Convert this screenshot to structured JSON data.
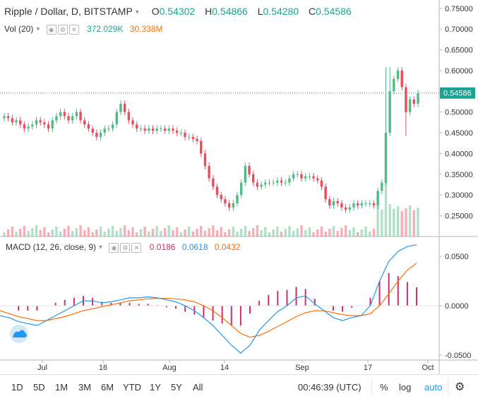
{
  "header": {
    "symbol": "Ripple / Dollar, D, BITSTAMP",
    "o_label": "O",
    "o_value": "0.54302",
    "h_label": "H",
    "h_value": "0.54866",
    "l_label": "L",
    "l_value": "0.54280",
    "c_label": "C",
    "c_value": "0.54586"
  },
  "volume": {
    "label": "Vol (20)",
    "value1": "372.029K",
    "value2": "30.338M"
  },
  "macd": {
    "label": "MACD (12, 26, close, 9)",
    "hist": "0.0186",
    "macd": "0.0618",
    "signal": "0.0432"
  },
  "price_axis": [
    "0.75000",
    "0.70000",
    "0.65000",
    "0.60000",
    "0.55000",
    "0.50000",
    "0.45000",
    "0.40000",
    "0.35000",
    "0.30000",
    "0.25000"
  ],
  "last_price": "0.54586",
  "macd_axis": [
    "0.0500",
    "0.0000",
    "-0.0500"
  ],
  "time_axis": [
    "Jul",
    "16",
    "Aug",
    "14",
    "Sep",
    "17",
    "Oct"
  ],
  "toolbar": {
    "ranges": [
      "1D",
      "5D",
      "1M",
      "3M",
      "6M",
      "YTD",
      "1Y",
      "5Y",
      "All"
    ],
    "time": "00:46:39 (UTC)",
    "percent": "%",
    "log": "log",
    "auto": "auto"
  },
  "colors": {
    "up": "#53b987",
    "down": "#eb4d5c",
    "macd": "#2196f3",
    "signal": "#ff6d00",
    "hist": "#cc2f71",
    "accent": "#1aa392"
  },
  "chart_data": {
    "type": "candlestick",
    "price_ylim": [
      0.2,
      0.77
    ],
    "macd_ylim": [
      -0.055,
      0.068
    ],
    "x_ticks": [
      "Jul",
      "16",
      "Aug",
      "14",
      "Sep",
      "17",
      "Oct"
    ],
    "closes": [
      0.49,
      0.485,
      0.475,
      0.48,
      0.47,
      0.46,
      0.465,
      0.47,
      0.48,
      0.475,
      0.47,
      0.46,
      0.48,
      0.49,
      0.5,
      0.49,
      0.48,
      0.49,
      0.5,
      0.48,
      0.47,
      0.46,
      0.45,
      0.44,
      0.45,
      0.46,
      0.46,
      0.47,
      0.5,
      0.52,
      0.5,
      0.48,
      0.47,
      0.46,
      0.46,
      0.455,
      0.46,
      0.455,
      0.46,
      0.46,
      0.455,
      0.46,
      0.455,
      0.45,
      0.45,
      0.44,
      0.44,
      0.435,
      0.43,
      0.4,
      0.37,
      0.34,
      0.32,
      0.3,
      0.29,
      0.28,
      0.27,
      0.28,
      0.3,
      0.33,
      0.37,
      0.35,
      0.33,
      0.32,
      0.325,
      0.33,
      0.33,
      0.33,
      0.335,
      0.33,
      0.33,
      0.34,
      0.35,
      0.35,
      0.34,
      0.345,
      0.345,
      0.34,
      0.335,
      0.32,
      0.29,
      0.275,
      0.285,
      0.28,
      0.27,
      0.265,
      0.27,
      0.28,
      0.275,
      0.28,
      0.28,
      0.28,
      0.275,
      0.31,
      0.33,
      0.45,
      0.55,
      0.58,
      0.6,
      0.56,
      0.5,
      0.53,
      0.52,
      0.545
    ],
    "macd_series": {
      "macd": [
        -0.01,
        -0.012,
        -0.016,
        -0.018,
        -0.02,
        -0.015,
        -0.01,
        -0.005,
        0.0,
        0.005,
        0.005,
        0.003,
        0.004,
        0.006,
        0.008,
        0.008,
        0.009,
        0.008,
        0.006,
        0.004,
        0.0,
        -0.005,
        -0.012,
        -0.02,
        -0.03,
        -0.04,
        -0.048,
        -0.04,
        -0.025,
        -0.015,
        -0.006,
        0.0,
        0.008,
        0.01,
        0.002,
        -0.005,
        -0.012,
        -0.015,
        -0.012,
        -0.01,
        0.0,
        0.025,
        0.045,
        0.055,
        0.06,
        0.0618
      ],
      "signal": [
        -0.005,
        -0.008,
        -0.011,
        -0.013,
        -0.015,
        -0.015,
        -0.013,
        -0.011,
        -0.008,
        -0.005,
        -0.003,
        -0.001,
        0.001,
        0.003,
        0.005,
        0.006,
        0.007,
        0.0075,
        0.0075,
        0.007,
        0.006,
        0.004,
        0.0,
        -0.005,
        -0.012,
        -0.02,
        -0.028,
        -0.032,
        -0.03,
        -0.026,
        -0.021,
        -0.016,
        -0.011,
        -0.007,
        -0.005,
        -0.005,
        -0.007,
        -0.009,
        -0.01,
        -0.01,
        -0.008,
        0.0,
        0.012,
        0.025,
        0.036,
        0.0432
      ]
    }
  }
}
